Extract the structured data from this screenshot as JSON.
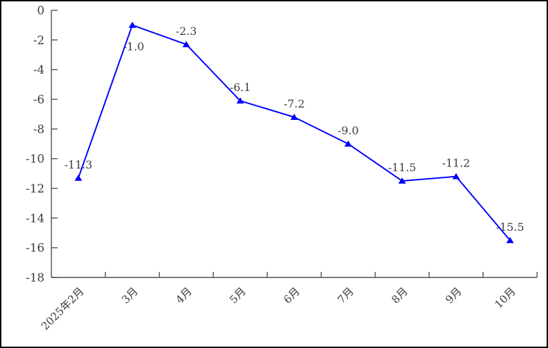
{
  "chart_data": {
    "type": "line",
    "title": "",
    "xlabel": "",
    "ylabel": "",
    "categories": [
      "2025年2月",
      "3月",
      "4月",
      "5月",
      "6月",
      "7月",
      "8月",
      "9月",
      "10月"
    ],
    "series": [
      {
        "name": "",
        "values": [
          -11.3,
          -1.0,
          -2.3,
          -6.1,
          -7.2,
          -9.0,
          -11.5,
          -11.2,
          -15.5
        ]
      }
    ],
    "data_labels": [
      "-11.3",
      "-1.0",
      "-2.3",
      "-6.1",
      "-7.2",
      "-9.0",
      "-11.5",
      "-11.2",
      "-15.5"
    ],
    "data_label_placement": [
      "above",
      "below",
      "above",
      "above",
      "above",
      "above",
      "above",
      "above",
      "above"
    ],
    "y_ticks": [
      0,
      -2,
      -4,
      -6,
      -8,
      -10,
      -12,
      -14,
      -16,
      -18
    ],
    "y_tick_labels": [
      "0",
      "-2",
      "-4",
      "-6",
      "-8",
      "-10",
      "-12",
      "-14",
      "-16",
      "-18"
    ],
    "ylim": [
      -18,
      0
    ],
    "grid": false,
    "legend": "none",
    "marker": "triangle-up",
    "x_label_rotation_deg": -45,
    "colors": {
      "line": "#0000ff",
      "marker": "#0000ff",
      "axis": "#4d4d4d",
      "text": "#3d3d3d",
      "background": "#ffffff",
      "frame_border": "#000000"
    }
  }
}
